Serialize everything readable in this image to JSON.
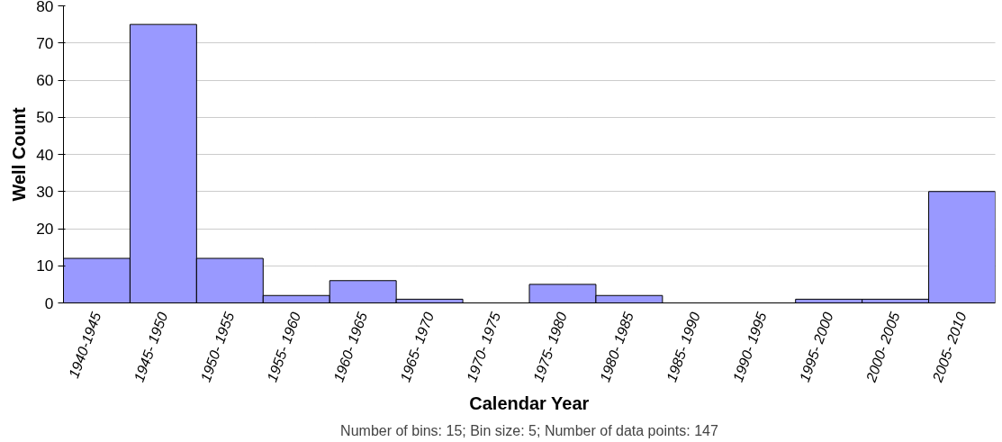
{
  "chart_data": {
    "type": "bar",
    "xlabel": "Calendar Year",
    "ylabel": "Well Count",
    "categories": [
      "1940-1945",
      "1945- 1950",
      "1950- 1955",
      "1955- 1960",
      "1960- 1965",
      "1965- 1970",
      "1970- 1975",
      "1975- 1980",
      "1980- 1985",
      "1985- 1990",
      "1990- 1995",
      "1995- 2000",
      "2000- 2005",
      "2005- 2010"
    ],
    "values": [
      12,
      75,
      12,
      2,
      6,
      1,
      0,
      5,
      2,
      0,
      0,
      1,
      1,
      30
    ],
    "color": "#9999ff",
    "ylim": [
      0,
      80
    ],
    "yticks": [
      0,
      10,
      20,
      30,
      40,
      50,
      60,
      70,
      80
    ],
    "grid": "y",
    "annotations": [
      "Number of bins: 15; Bin size: 5; Number of data points: 147"
    ]
  }
}
